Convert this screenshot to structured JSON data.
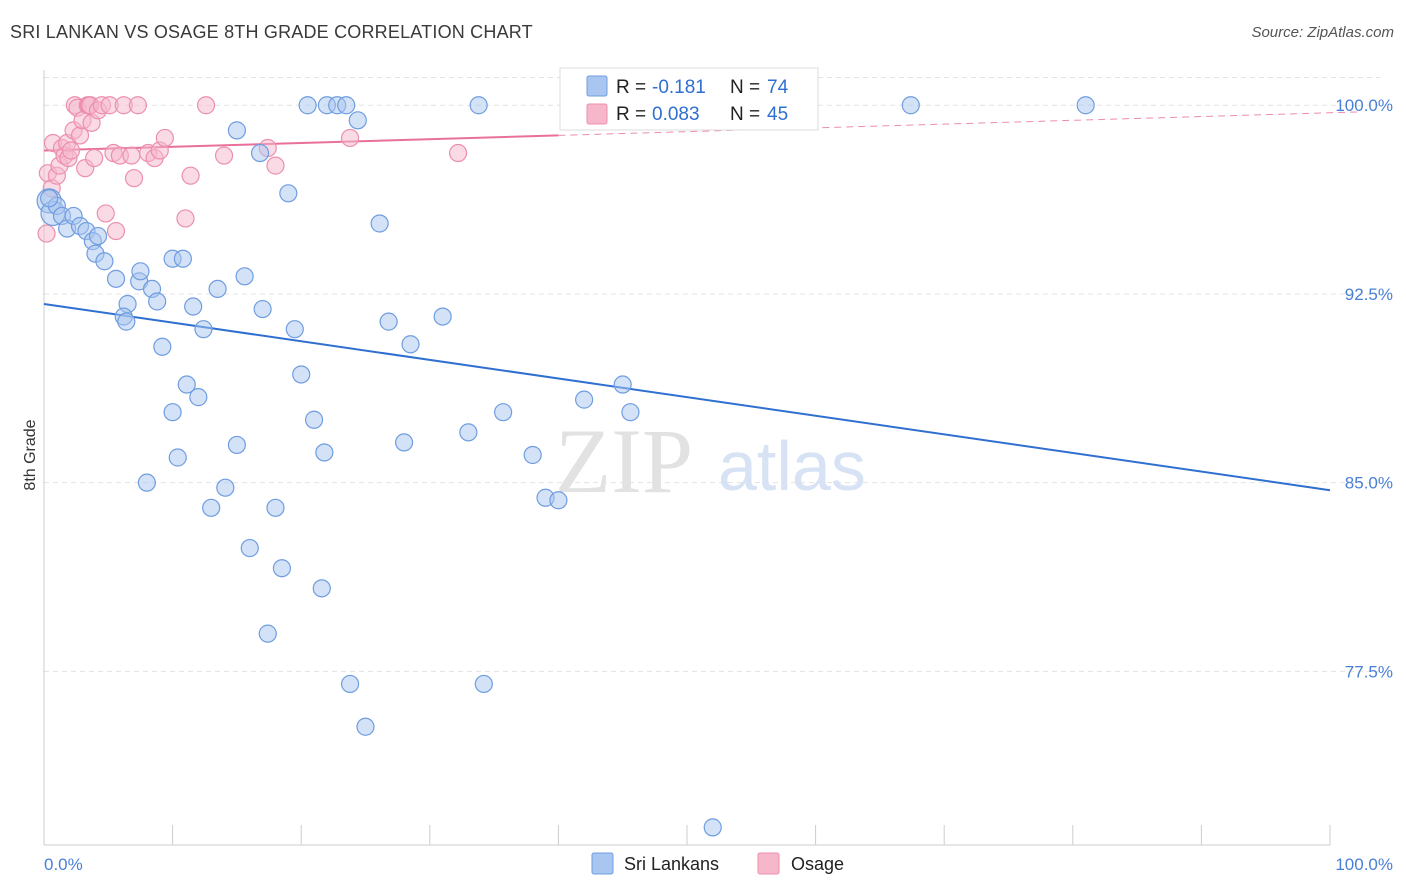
{
  "title": "SRI LANKAN VS OSAGE 8TH GRADE CORRELATION CHART",
  "source": "Source: ZipAtlas.com",
  "watermark": {
    "zip": "ZIP",
    "atlas": "atlas"
  },
  "colors": {
    "sri_lankans_fill": "#a9c6f0",
    "sri_lankans_stroke": "#6f9de0",
    "sri_lankans_line": "#2f6fd0",
    "osage_fill": "#f6b7cb",
    "osage_stroke": "#ec8fae",
    "osage_line": "#e8709a",
    "tick_label": "#4a7fd6",
    "grid": "#e3e3e3"
  },
  "legend": {
    "rows": [
      {
        "r_label": "R =",
        "r_value": "-0.181",
        "n_label": "N =",
        "n_value": "74"
      },
      {
        "r_label": "R =",
        "r_value": "0.083",
        "n_label": "N =",
        "n_value": "45"
      }
    ]
  },
  "chart_data": {
    "type": "scatter",
    "title": "SRI LANKAN VS OSAGE 8TH GRADE CORRELATION CHART",
    "xlabel": "",
    "ylabel": "8th Grade",
    "xlim": [
      0,
      100
    ],
    "ylim": [
      70.6,
      101.4
    ],
    "x_tick_labels": [
      "0.0%",
      "100.0%"
    ],
    "y_ticks": [
      77.5,
      85.0,
      92.5,
      100.0
    ],
    "y_tick_labels": [
      "77.5%",
      "85.0%",
      "92.5%",
      "100.0%"
    ],
    "grid": true,
    "legend_position": "top-center",
    "series": [
      {
        "name": "Sri Lankans",
        "r": -0.181,
        "n": 74,
        "trend": {
          "x0": 0,
          "y0": 92.1,
          "x1": 100,
          "y1": 84.7
        },
        "points": [
          [
            0.4,
            96.2
          ],
          [
            0.7,
            95.7
          ],
          [
            1.0,
            96.0
          ],
          [
            1.4,
            95.6
          ],
          [
            1.8,
            95.1
          ],
          [
            2.3,
            95.6
          ],
          [
            2.8,
            95.2
          ],
          [
            3.3,
            95.0
          ],
          [
            3.8,
            94.6
          ],
          [
            4.2,
            94.8
          ],
          [
            4.0,
            94.1
          ],
          [
            4.7,
            93.8
          ],
          [
            5.6,
            93.1
          ],
          [
            7.4,
            93.0
          ],
          [
            7.5,
            93.4
          ],
          [
            8.4,
            92.7
          ],
          [
            8.8,
            92.2
          ],
          [
            6.5,
            92.1
          ],
          [
            6.2,
            91.6
          ],
          [
            6.4,
            91.4
          ],
          [
            10.0,
            93.9
          ],
          [
            10.8,
            93.9
          ],
          [
            11.6,
            92.0
          ],
          [
            12.4,
            91.1
          ],
          [
            13.5,
            92.7
          ],
          [
            15.6,
            93.2
          ],
          [
            17.0,
            91.9
          ],
          [
            19.5,
            91.1
          ],
          [
            20.0,
            89.3
          ],
          [
            9.2,
            90.4
          ],
          [
            11.1,
            88.9
          ],
          [
            12.0,
            88.4
          ],
          [
            10.0,
            87.8
          ],
          [
            10.4,
            86.0
          ],
          [
            8.0,
            85.0
          ],
          [
            13.0,
            84.0
          ],
          [
            14.1,
            84.8
          ],
          [
            15.0,
            86.5
          ],
          [
            16.0,
            82.4
          ],
          [
            18.0,
            84.0
          ],
          [
            18.5,
            81.6
          ],
          [
            21.0,
            87.5
          ],
          [
            21.8,
            86.2
          ],
          [
            21.6,
            80.8
          ],
          [
            17.4,
            79.0
          ],
          [
            23.8,
            77.0
          ],
          [
            25.0,
            75.3
          ],
          [
            26.1,
            95.3
          ],
          [
            26.8,
            91.4
          ],
          [
            28.0,
            86.6
          ],
          [
            28.5,
            90.5
          ],
          [
            31.0,
            91.6
          ],
          [
            33.0,
            87.0
          ],
          [
            34.2,
            77.0
          ],
          [
            35.7,
            87.8
          ],
          [
            38.0,
            86.1
          ],
          [
            39.0,
            84.4
          ],
          [
            40.0,
            84.3
          ],
          [
            42.0,
            88.3
          ],
          [
            45.0,
            88.9
          ],
          [
            45.6,
            87.8
          ],
          [
            52.0,
            71.3
          ],
          [
            20.5,
            100.0
          ],
          [
            22.0,
            100.0
          ],
          [
            22.8,
            100.0
          ],
          [
            23.5,
            100.0
          ],
          [
            24.4,
            99.4
          ],
          [
            33.8,
            100.0
          ],
          [
            67.4,
            100.0
          ],
          [
            81.0,
            100.0
          ],
          [
            15.0,
            99.0
          ],
          [
            16.8,
            98.1
          ],
          [
            19.0,
            96.5
          ],
          [
            0.4,
            96.3
          ]
        ]
      },
      {
        "name": "Osage",
        "r": 0.083,
        "n": 45,
        "trend": {
          "x0": 0,
          "y0": 98.2,
          "x1": 100,
          "y1": 99.7
        },
        "points": [
          [
            0.2,
            94.9
          ],
          [
            0.3,
            97.3
          ],
          [
            0.6,
            96.7
          ],
          [
            0.7,
            98.5
          ],
          [
            1.0,
            97.2
          ],
          [
            1.2,
            97.6
          ],
          [
            1.4,
            98.3
          ],
          [
            1.6,
            98.0
          ],
          [
            1.8,
            98.5
          ],
          [
            1.9,
            97.9
          ],
          [
            2.1,
            98.2
          ],
          [
            2.3,
            99.0
          ],
          [
            2.4,
            100.0
          ],
          [
            2.6,
            99.9
          ],
          [
            2.8,
            98.8
          ],
          [
            3.0,
            99.4
          ],
          [
            3.2,
            97.5
          ],
          [
            3.4,
            100.0
          ],
          [
            3.5,
            100.0
          ],
          [
            3.6,
            100.0
          ],
          [
            3.7,
            99.3
          ],
          [
            3.9,
            97.9
          ],
          [
            4.2,
            99.8
          ],
          [
            4.5,
            100.0
          ],
          [
            4.8,
            95.7
          ],
          [
            5.1,
            100.0
          ],
          [
            5.4,
            98.1
          ],
          [
            5.6,
            95.0
          ],
          [
            5.9,
            98.0
          ],
          [
            6.2,
            100.0
          ],
          [
            6.8,
            98.0
          ],
          [
            7.0,
            97.1
          ],
          [
            7.3,
            100.0
          ],
          [
            8.1,
            98.1
          ],
          [
            8.6,
            97.9
          ],
          [
            9.0,
            98.2
          ],
          [
            9.4,
            98.7
          ],
          [
            11.0,
            95.5
          ],
          [
            11.4,
            97.2
          ],
          [
            12.6,
            100.0
          ],
          [
            14.0,
            98.0
          ],
          [
            17.4,
            98.3
          ],
          [
            18.0,
            97.6
          ],
          [
            23.8,
            98.7
          ],
          [
            32.2,
            98.1
          ]
        ]
      }
    ]
  },
  "bottom_legend": [
    {
      "label": "Sri Lankans"
    },
    {
      "label": "Osage"
    }
  ]
}
